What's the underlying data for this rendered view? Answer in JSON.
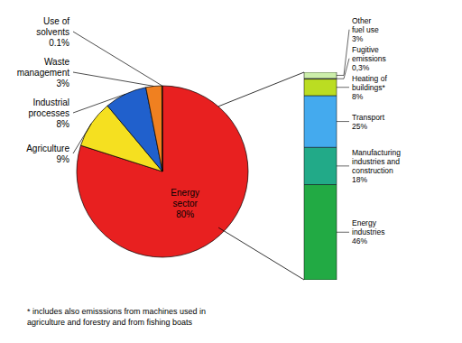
{
  "chart_data": [
    {
      "type": "pie",
      "categories": [
        "Energy\nsector",
        "Agriculture",
        "Industrial\nprocesses",
        "Waste\nmanagement",
        "Use of\nsolvents"
      ],
      "values": [
        80,
        9,
        8,
        3,
        0.1
      ],
      "value_labels": [
        "80%",
        "9%",
        "8%",
        "3%",
        "0.1%"
      ],
      "colors": [
        "#e82020",
        "#f5e020",
        "#2060cc",
        "#f08020",
        "#b8d820"
      ],
      "data_labels": true
    },
    {
      "type": "bar",
      "stacked": true,
      "categories": [
        null
      ],
      "series": [
        {
          "name": "Energy\nindustries",
          "color": "#22aa44",
          "values": [
            46
          ],
          "value_labels": [
            "46%"
          ]
        },
        {
          "name": "Manufacturing\nindustries and\nconstruction",
          "color": "#22aa88",
          "values": [
            18
          ],
          "value_labels": [
            "18%"
          ]
        },
        {
          "name": "Transport",
          "color": "#44aaee",
          "values": [
            25
          ],
          "value_labels": [
            "25%"
          ]
        },
        {
          "name": "Heating of\nbuildings*",
          "color": "#bbdd22",
          "values": [
            8
          ],
          "value_labels": [
            "8%"
          ]
        },
        {
          "name": "Fugitive\nemissions",
          "color": "#aaaadd",
          "values": [
            0.3
          ],
          "value_labels": [
            "0,3%"
          ]
        },
        {
          "name": "Other\nfuel use",
          "color": "#cceeaa",
          "values": [
            3
          ],
          "value_labels": [
            "3%"
          ]
        }
      ],
      "ylim": [
        0,
        100.3
      ],
      "tick_labels": false,
      "data_labels": true,
      "annotations": [
        "* includes also emisssions from machines used in\nagriculture and forestry and from fishing boats"
      ]
    }
  ]
}
